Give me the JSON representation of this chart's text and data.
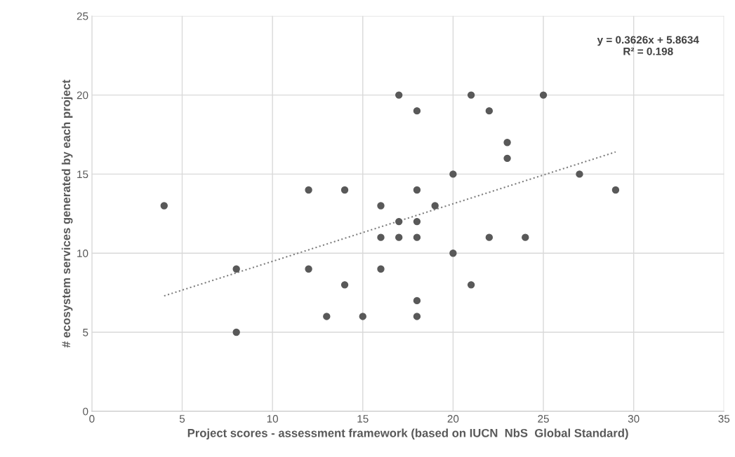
{
  "chart_data": {
    "type": "scatter",
    "xlabel": "Project scores - assessment framework (based on IUCN  NbS  Global Standard)",
    "ylabel": "# ecosystem services generated by each project",
    "annotations": [
      "y = 0.3626x + 5.8634\nR² = 0.198"
    ],
    "series": [
      {
        "color": "#595959",
        "marker": "circle",
        "x": [
          4,
          8,
          8,
          12,
          12,
          13,
          14,
          14,
          15,
          16,
          16,
          16,
          17,
          17,
          17,
          18,
          18,
          18,
          18,
          18,
          18,
          19,
          20,
          20,
          21,
          21,
          22,
          22,
          23,
          23,
          24,
          25,
          27,
          29
        ],
        "values": [
          13,
          9,
          5,
          14,
          9,
          6,
          14,
          8,
          6,
          13,
          11,
          9,
          20,
          12,
          11,
          19,
          14,
          12,
          11,
          7,
          6,
          13,
          15,
          10,
          20,
          8,
          19,
          11,
          17,
          16,
          11,
          20,
          15,
          14
        ]
      },
      {
        "type": "line",
        "color": "#7f7f7f",
        "line_style": "dotted",
        "marker": "none",
        "x": [
          4,
          29
        ],
        "values": [
          7.3,
          16.4
        ]
      }
    ],
    "xlim": [
      0,
      35
    ],
    "xticks": [
      0,
      5,
      10,
      15,
      20,
      25,
      30,
      35
    ],
    "ylim": [
      0,
      25
    ],
    "yticks": [
      0,
      5,
      10,
      15,
      20,
      25
    ],
    "grid": true,
    "legend": false
  }
}
